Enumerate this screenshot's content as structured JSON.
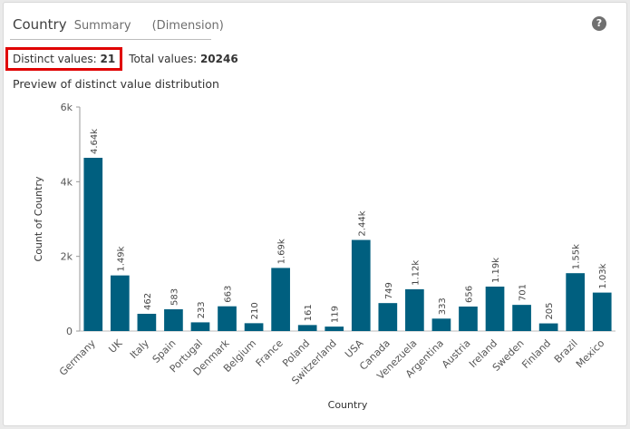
{
  "header": {
    "title": "Country",
    "subtitle": "Summary",
    "field_type": "(Dimension)",
    "help_glyph": "?"
  },
  "stats": {
    "distinct_label": "Distinct values:",
    "distinct_value": "21",
    "total_label": "Total values:",
    "total_value": "20246"
  },
  "preview_title": "Preview of distinct value distribution",
  "colors": {
    "bar": "#005f7f",
    "highlight_border": "#e00000"
  },
  "chart_data": {
    "type": "bar",
    "xlabel": "Country",
    "ylabel": "Count of Country",
    "ylim": [
      0,
      6000
    ],
    "yticks": [
      0,
      2000,
      4000,
      6000
    ],
    "ytick_labels": [
      "0",
      "2k",
      "4k",
      "6k"
    ],
    "categories": [
      "Germany",
      "UK",
      "Italy",
      "Spain",
      "Portugal",
      "Denmark",
      "Belgium",
      "France",
      "Poland",
      "Switzerland",
      "USA",
      "Canada",
      "Venezuela",
      "Argentina",
      "Austria",
      "Ireland",
      "Sweden",
      "Finland",
      "Brazil",
      "Mexico"
    ],
    "values": [
      4640,
      1490,
      462,
      583,
      233,
      663,
      210,
      1690,
      161,
      119,
      2440,
      749,
      1120,
      333,
      656,
      1190,
      701,
      205,
      1550,
      1030
    ],
    "labels": [
      "4.64k",
      "1.49k",
      "462",
      "583",
      "233",
      "663",
      "210",
      "1.69k",
      "161",
      "119",
      "2.44k",
      "749",
      "1.12k",
      "333",
      "656",
      "1.19k",
      "701",
      "205",
      "1.55k",
      "1.03k"
    ]
  }
}
